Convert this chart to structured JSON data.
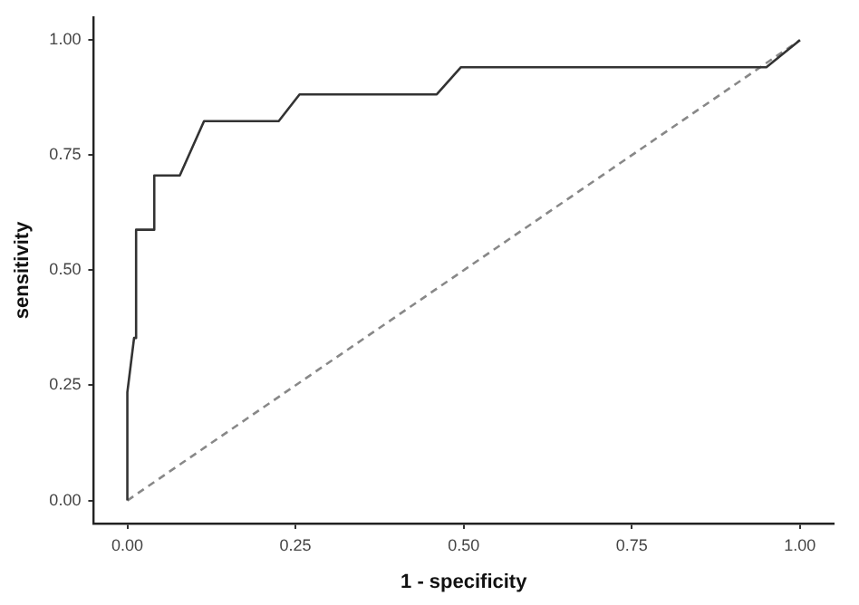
{
  "chart_data": {
    "type": "line",
    "xlabel": "1 - specificity",
    "ylabel": "sensitivity",
    "xlim": [
      -0.05,
      1.05
    ],
    "ylim": [
      -0.05,
      1.05
    ],
    "xticks": [
      {
        "value": 0,
        "label": "0.00"
      },
      {
        "value": 0.25,
        "label": "0.25"
      },
      {
        "value": 0.5,
        "label": "0.50"
      },
      {
        "value": 0.75,
        "label": "0.75"
      },
      {
        "value": 1,
        "label": "1.00"
      }
    ],
    "yticks": [
      {
        "value": 0,
        "label": "0.00"
      },
      {
        "value": 0.25,
        "label": "0.25"
      },
      {
        "value": 0.5,
        "label": "0.50"
      },
      {
        "value": 0.75,
        "label": "0.75"
      },
      {
        "value": 1,
        "label": "1.00"
      }
    ],
    "grid": false,
    "legend": false,
    "marker": "none",
    "series": [
      {
        "color": "#333333",
        "line_style": "solid",
        "x": [
          0,
          0,
          0.005,
          0.01,
          0.013,
          0.013,
          0.04,
          0.04,
          0.078,
          0.096,
          0.114,
          0.225,
          0.256,
          0.46,
          0.496,
          0.95,
          1
        ],
        "values": [
          0,
          0.235,
          0.294,
          0.353,
          0.353,
          0.588,
          0.588,
          0.706,
          0.706,
          0.765,
          0.824,
          0.824,
          0.882,
          0.882,
          0.941,
          0.941,
          1
        ]
      },
      {
        "color": "#888888",
        "line_style": "dashed",
        "x": [
          0,
          1
        ],
        "values": [
          0,
          1
        ]
      }
    ]
  }
}
